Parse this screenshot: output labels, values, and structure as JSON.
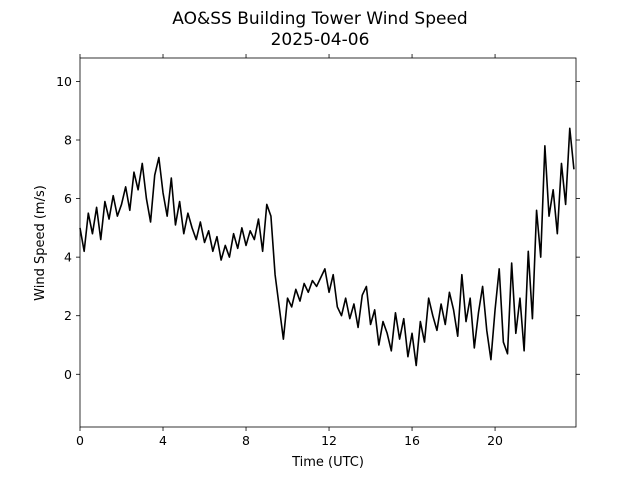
{
  "chart_data": {
    "type": "line",
    "title": "AO&SS Building Tower Wind Speed",
    "subtitle": "2025-04-06",
    "x_label": "Time (UTC)",
    "y_label": "Wind Speed (m/s)",
    "x": [
      0,
      0.2,
      0.4,
      0.6,
      0.8,
      1,
      1.2,
      1.4,
      1.6,
      1.8,
      2,
      2.2,
      2.4,
      2.6,
      2.8,
      3,
      3.2,
      3.4,
      3.6,
      3.8,
      4,
      4.2,
      4.4,
      4.6,
      4.8,
      5,
      5.2,
      5.4,
      5.6,
      5.8,
      6,
      6.2,
      6.4,
      6.6,
      6.8,
      7,
      7.2,
      7.4,
      7.6,
      7.8,
      8,
      8.2,
      8.4,
      8.6,
      8.8,
      9,
      9.2,
      9.4,
      9.6,
      9.8,
      10,
      10.2,
      10.4,
      10.6,
      10.8,
      11,
      11.2,
      11.4,
      11.6,
      11.8,
      12,
      12.2,
      12.4,
      12.6,
      12.8,
      13,
      13.2,
      13.4,
      13.6,
      13.8,
      14,
      14.2,
      14.4,
      14.6,
      14.8,
      15,
      15.2,
      15.4,
      15.6,
      15.8,
      16,
      16.2,
      16.4,
      16.6,
      16.8,
      17,
      17.2,
      17.4,
      17.6,
      17.8,
      18,
      18.2,
      18.4,
      18.6,
      18.8,
      19,
      19.2,
      19.4,
      19.6,
      19.8,
      20,
      20.2,
      20.4,
      20.6,
      20.8,
      21,
      21.2,
      21.4,
      21.6,
      21.8,
      22,
      22.2,
      22.4,
      22.6,
      22.8,
      23,
      23.2,
      23.4,
      23.6,
      23.8
    ],
    "series": [
      {
        "color": "#000000",
        "values": [
          5.0,
          4.2,
          5.5,
          4.8,
          5.7,
          4.6,
          5.9,
          5.3,
          6.1,
          5.4,
          5.8,
          6.4,
          5.6,
          6.9,
          6.3,
          7.2,
          6.0,
          5.2,
          6.8,
          7.4,
          6.2,
          5.4,
          6.7,
          5.1,
          5.9,
          4.8,
          5.5,
          5.0,
          4.6,
          5.2,
          4.5,
          4.9,
          4.2,
          4.7,
          3.9,
          4.4,
          4.0,
          4.8,
          4.3,
          5.0,
          4.4,
          4.9,
          4.6,
          5.3,
          4.2,
          5.8,
          5.4,
          3.4,
          2.3,
          1.2,
          2.6,
          2.3,
          2.9,
          2.5,
          3.1,
          2.8,
          3.2,
          3.0,
          3.3,
          3.6,
          2.8,
          3.4,
          2.3,
          2.0,
          2.6,
          1.9,
          2.4,
          1.6,
          2.7,
          3.0,
          1.7,
          2.2,
          1.0,
          1.8,
          1.4,
          0.8,
          2.1,
          1.2,
          1.9,
          0.6,
          1.4,
          0.3,
          1.8,
          1.1,
          2.6,
          2.0,
          1.5,
          2.4,
          1.7,
          2.8,
          2.2,
          1.3,
          3.4,
          1.8,
          2.6,
          0.9,
          2.1,
          3.0,
          1.5,
          0.5,
          2.2,
          3.6,
          1.1,
          0.7,
          3.8,
          1.4,
          2.6,
          0.8,
          4.2,
          1.9,
          5.6,
          4.0,
          7.8,
          5.4,
          6.3,
          4.8,
          7.2,
          5.8,
          8.4,
          7.0
        ]
      }
    ],
    "xlim": [
      0,
      23.9
    ],
    "ylim": [
      -1.8,
      10.8
    ],
    "xticks": [
      0,
      4,
      8,
      12,
      16,
      20
    ],
    "yticks": [
      0,
      2,
      4,
      6,
      8,
      10
    ]
  }
}
